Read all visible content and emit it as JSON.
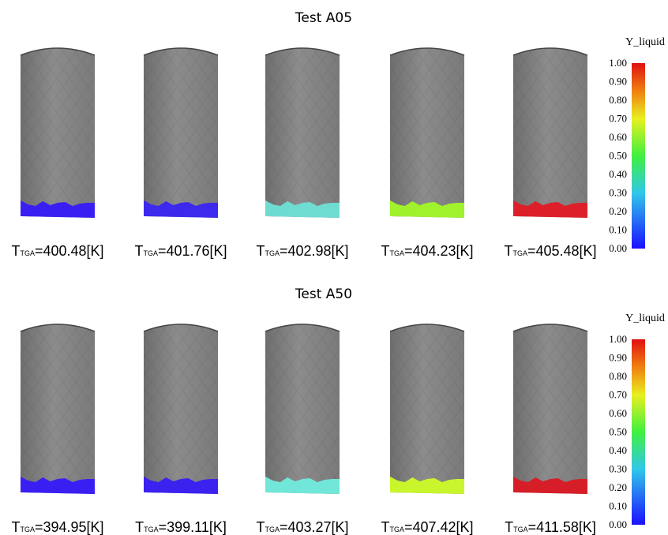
{
  "panels": [
    {
      "title": "Test A05",
      "colorbar": {
        "label": "Y_liquid",
        "ticks": [
          "1.00",
          "0.90",
          "0.80",
          "0.70",
          "0.60",
          "0.50",
          "0.40",
          "0.30",
          "0.20",
          "0.10",
          "0.00"
        ]
      },
      "tubes": [
        {
          "symbol": "T",
          "subscript": "TGA",
          "text": "=400.48[K]",
          "color": "#3a1ff2"
        },
        {
          "symbol": "T",
          "subscript": "TGA",
          "text": "=401.76[K]",
          "color": "#3d28ee"
        },
        {
          "symbol": "T",
          "subscript": "TGA",
          "text": "=402.98[K]",
          "color": "#6fdcd2"
        },
        {
          "symbol": "T",
          "subscript": "TGA",
          "text": "=404.23[K]",
          "color": "#9ff22c"
        },
        {
          "symbol": "T",
          "subscript": "TGA",
          "text": "=405.48[K]",
          "color": "#dd1f2a"
        }
      ]
    },
    {
      "title": "Test A50",
      "colorbar": {
        "label": "Y_liquid",
        "ticks": [
          "1.00",
          "0.90",
          "0.80",
          "0.70",
          "0.60",
          "0.50",
          "0.40",
          "0.30",
          "0.20",
          "0.10",
          "0.00"
        ]
      },
      "tubes": [
        {
          "symbol": "T",
          "subscript": "TGA",
          "text": "=394.95[K]",
          "color": "#3a1ff2"
        },
        {
          "symbol": "T",
          "subscript": "TGA",
          "text": "=399.11[K]",
          "color": "#3b22ef"
        },
        {
          "symbol": "T",
          "subscript": "TGA",
          "text": "=403.27[K]",
          "color": "#72e6d8"
        },
        {
          "symbol": "T",
          "subscript": "TGA",
          "text": "=407.42[K]",
          "color": "#c9f52c"
        },
        {
          "symbol": "T",
          "subscript": "TGA",
          "text": "=411.58[K]",
          "color": "#d61e28"
        }
      ]
    }
  ]
}
